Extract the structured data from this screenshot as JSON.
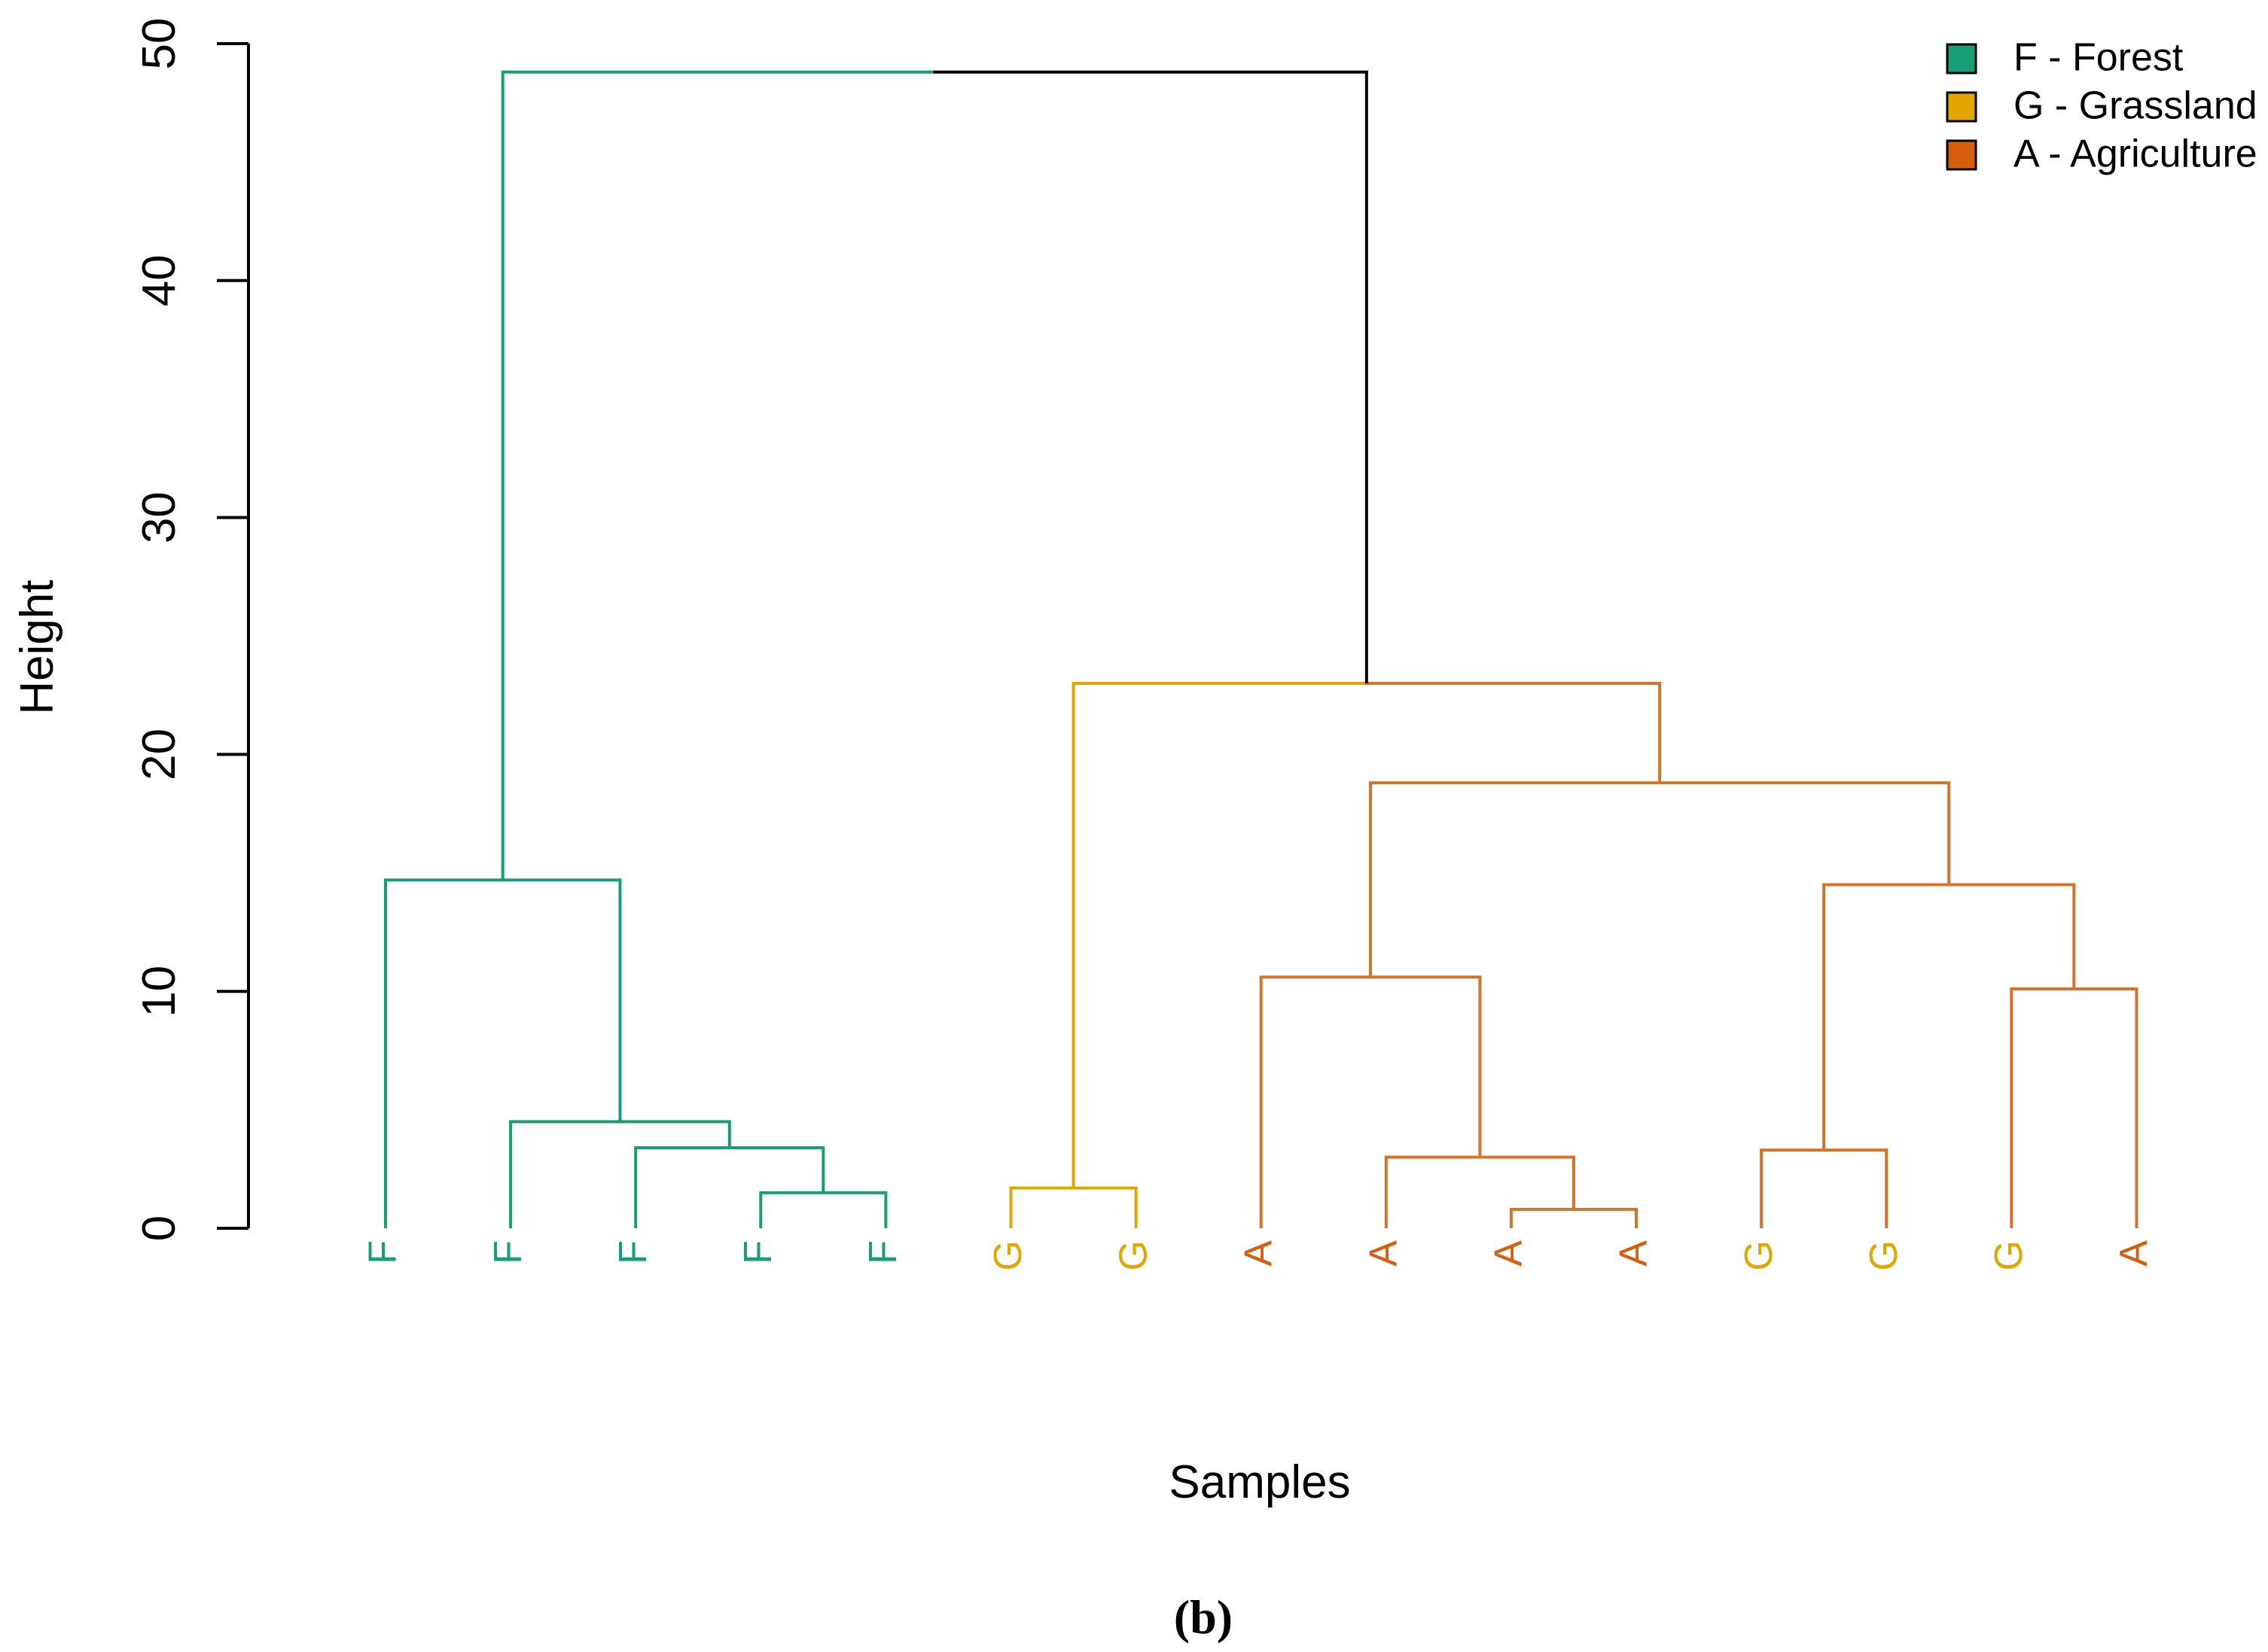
{
  "chart_data": {
    "type": "dendrogram",
    "xlabel": "Samples",
    "ylabel": "Height",
    "ylim": [
      0,
      50
    ],
    "yticks": [
      0,
      10,
      20,
      30,
      40,
      50
    ],
    "caption": "(b)",
    "legend": {
      "placement": "top-right",
      "entries": [
        {
          "key": "F",
          "label": "F - Forest",
          "color": "#169E77"
        },
        {
          "key": "G",
          "label": "G - Grassland",
          "color": "#E3A500"
        },
        {
          "key": "A",
          "label": "A - Agriculture",
          "color": "#D65F0E"
        }
      ]
    },
    "branch_colors": {
      "F": "#169E77",
      "G": "#E3A500",
      "A": "#D4742A",
      "root": "#000000"
    },
    "leaves": [
      "F",
      "F",
      "F",
      "F",
      "F",
      "G",
      "G",
      "A",
      "A",
      "A",
      "A",
      "G",
      "G",
      "G",
      "A"
    ],
    "merges": [
      {
        "id": "m1",
        "left": "L3",
        "right": "L4",
        "height": 1.5,
        "color": "F"
      },
      {
        "id": "m2",
        "left": "L2",
        "right": "m1",
        "height": 3.4,
        "color": "F"
      },
      {
        "id": "m3",
        "left": "L1",
        "right": "m2",
        "height": 4.5,
        "color": "F"
      },
      {
        "id": "m4",
        "left": "L0",
        "right": "m3",
        "height": 14.7,
        "color": "F"
      },
      {
        "id": "m5",
        "left": "L5",
        "right": "L6",
        "height": 1.7,
        "color": "G"
      },
      {
        "id": "m6",
        "left": "L9",
        "right": "L10",
        "height": 0.8,
        "color": "A"
      },
      {
        "id": "m7",
        "left": "L8",
        "right": "m6",
        "height": 3.0,
        "color": "A"
      },
      {
        "id": "m8",
        "left": "L7",
        "right": "m7",
        "height": 10.6,
        "color": "A"
      },
      {
        "id": "m9",
        "left": "L11",
        "right": "L12",
        "height": 3.3,
        "color": "A"
      },
      {
        "id": "m10",
        "left": "L13",
        "right": "L14",
        "height": 10.1,
        "color": "A"
      },
      {
        "id": "m11",
        "left": "m9",
        "right": "m10",
        "height": 14.5,
        "color": "A"
      },
      {
        "id": "m12",
        "left": "m8",
        "right": "m11",
        "height": 18.8,
        "color": "A"
      },
      {
        "id": "m13",
        "left": "m5",
        "right": "m12",
        "height": 23.0,
        "color": "split"
      },
      {
        "id": "m14",
        "left": "m4",
        "right": "m13",
        "height": 48.8,
        "color": "root"
      }
    ]
  }
}
